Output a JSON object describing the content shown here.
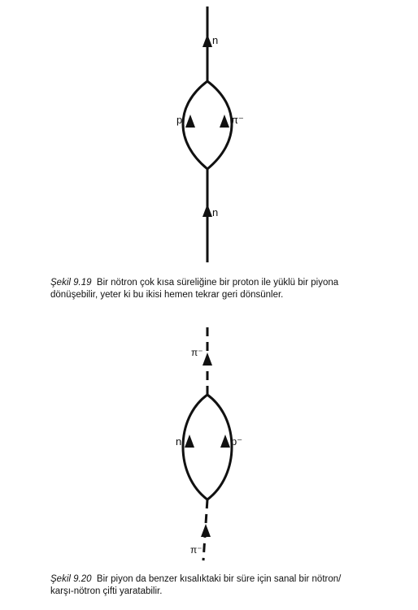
{
  "figure_1": {
    "labels": {
      "top_particle": "n",
      "left_particle": "p",
      "right_particle": "π⁻",
      "bottom_particle": "n"
    },
    "caption": {
      "number": "Şekil 9.19",
      "line1": "Bir nötron çok kısa süreliğine bir proton ile yüklü bir piyona",
      "line2": "dönüşebilir, yeter ki bu ikisi hemen tekrar geri dönsünler."
    }
  },
  "figure_2": {
    "labels": {
      "top_particle": "π⁻",
      "left_particle": "n",
      "right_particle": "p⁻",
      "bottom_particle": "π⁻"
    },
    "caption": {
      "number": "Şekil 9.20",
      "line1": "Bir piyon da benzer kısalıktaki bir süre için sanal bir nötron/",
      "line2": "karşı-nötron çifti yaratabilir."
    }
  },
  "colors": {
    "ink": "#111111",
    "background": "#ffffff"
  }
}
